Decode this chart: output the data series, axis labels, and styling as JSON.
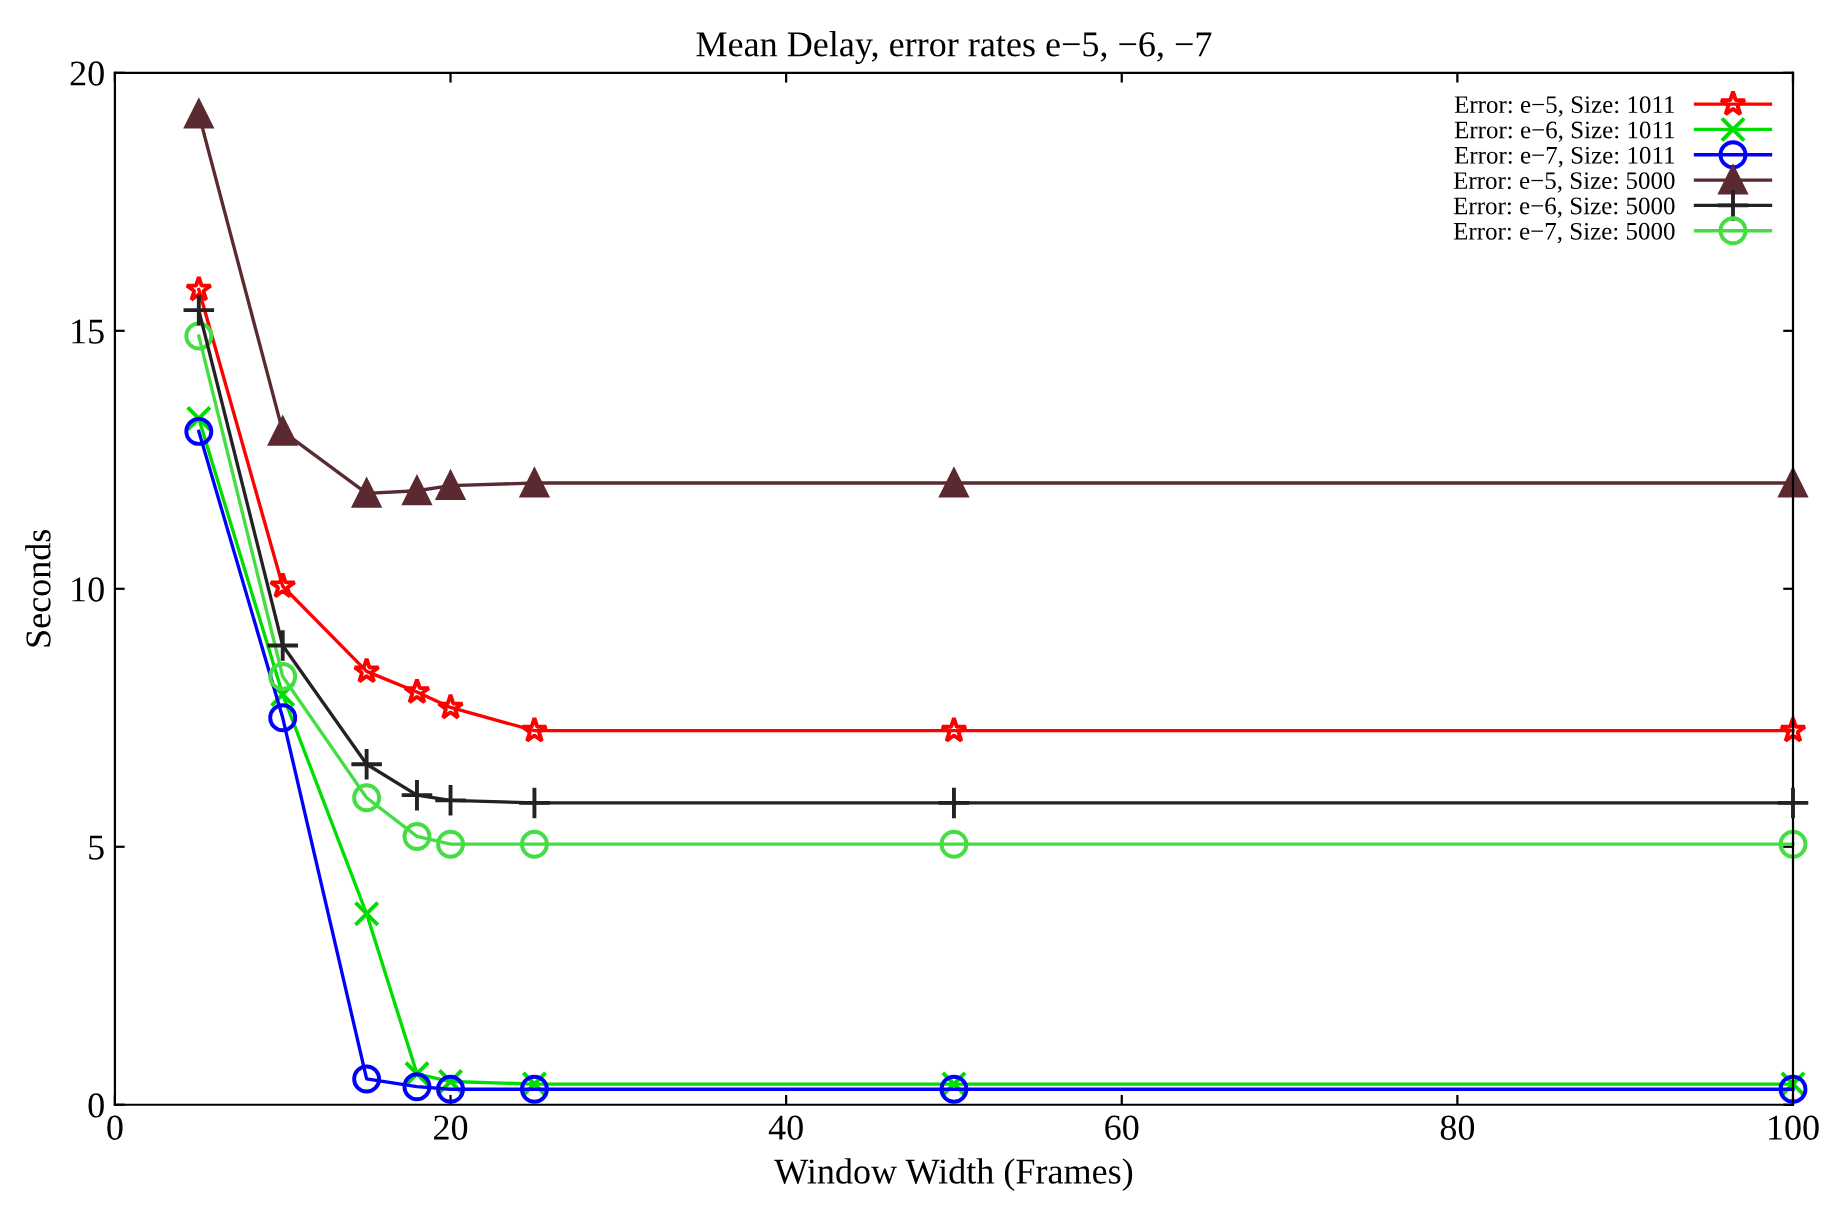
{
  "chart_data": {
    "type": "line",
    "title": "Mean Delay, error rates e−5, −6, −7",
    "xlabel": "Window Width (Frames)",
    "ylabel": "Seconds",
    "x": [
      5,
      10,
      15,
      18,
      20,
      25,
      50,
      100
    ],
    "series": [
      {
        "name": "Error: e−5, Size: 1011",
        "color": "#ff0000",
        "marker": "star",
        "values": [
          15.8,
          10.05,
          8.4,
          8.0,
          7.7,
          7.25,
          7.25,
          7.25
        ]
      },
      {
        "name": "Error: e−6, Size: 1011",
        "color": "#00dd00",
        "marker": "cross",
        "values": [
          13.3,
          7.95,
          3.7,
          0.6,
          0.45,
          0.4,
          0.4,
          0.4
        ]
      },
      {
        "name": "Error: e−7, Size: 1011",
        "color": "#0000ff",
        "marker": "circle",
        "values": [
          13.05,
          7.5,
          0.5,
          0.35,
          0.3,
          0.3,
          0.3,
          0.3
        ]
      },
      {
        "name": "Error: e−5, Size: 5000",
        "color": "#5a2a30",
        "marker": "triangle",
        "values": [
          19.2,
          13.05,
          11.85,
          11.9,
          12.0,
          12.05,
          12.05,
          12.05
        ]
      },
      {
        "name": "Error: e−6, Size: 5000",
        "color": "#222222",
        "marker": "plus",
        "values": [
          15.4,
          8.9,
          6.6,
          6.0,
          5.9,
          5.85,
          5.85,
          5.85
        ]
      },
      {
        "name": "Error: e−7, Size: 5000",
        "color": "#44dd44",
        "marker": "circle",
        "values": [
          14.9,
          8.3,
          5.95,
          5.2,
          5.05,
          5.05,
          5.05,
          5.05
        ]
      }
    ],
    "xlim": [
      0,
      100
    ],
    "xticks": [
      0,
      20,
      40,
      60,
      80,
      100
    ],
    "ylim": [
      0,
      20
    ],
    "yticks": [
      0,
      5,
      10,
      15,
      20
    ],
    "grid": false,
    "legend": "top right",
    "line_style": "solid"
  }
}
